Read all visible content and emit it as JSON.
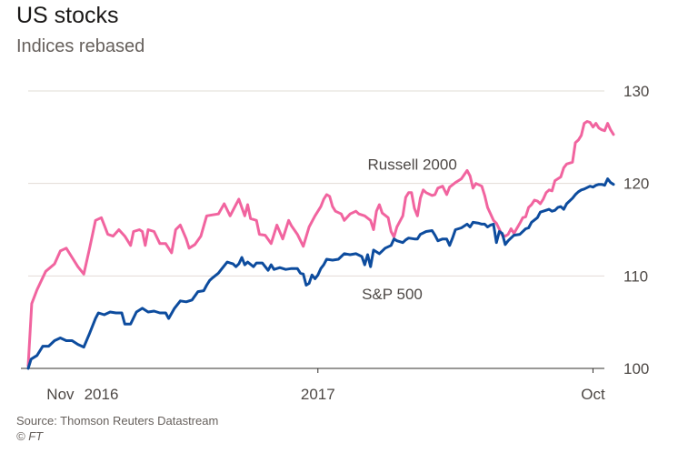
{
  "header": {
    "title": "US stocks",
    "subtitle": "Indices rebased"
  },
  "footer": {
    "source": "Source: Thomson Reuters Datastream",
    "credit": "© FT"
  },
  "colors": {
    "russell": "#f1649f",
    "sp500": "#0d4c9e",
    "grid": "#e2dcd6",
    "axis": "#33302e"
  },
  "chart_data": {
    "type": "line",
    "title": "US stocks",
    "subtitle": "Indices rebased",
    "ylim": [
      100,
      130
    ],
    "y_ticks": [
      100,
      110,
      120,
      130
    ],
    "xlim": [
      0,
      100
    ],
    "x_ticks": [
      {
        "x": 5.5,
        "label": "Nov"
      },
      {
        "x": 12.5,
        "label": "2016"
      },
      {
        "x": 49.5,
        "label": "2017"
      },
      {
        "x": 96.5,
        "label": "Oct"
      }
    ],
    "x_ticks_minor": [
      49.5,
      96.5
    ],
    "grid": true,
    "series": [
      {
        "name": "Russell 2000",
        "color": "#f1649f",
        "label_at": [
          58,
          121.5
        ],
        "points": [
          [
            0,
            100.3
          ],
          [
            0.6,
            107
          ],
          [
            1.5,
            108.5
          ],
          [
            3,
            110.5
          ],
          [
            4.5,
            111.3
          ],
          [
            5.5,
            112.7
          ],
          [
            6.5,
            113
          ],
          [
            7.5,
            112
          ],
          [
            8.5,
            111
          ],
          [
            9.5,
            110.2
          ],
          [
            10.5,
            113
          ],
          [
            11.5,
            116
          ],
          [
            12.5,
            116.3
          ],
          [
            13,
            115.5
          ],
          [
            13.6,
            114.5
          ],
          [
            14.5,
            114.3
          ],
          [
            15.5,
            115
          ],
          [
            16.5,
            114.3
          ],
          [
            17.5,
            113.3
          ],
          [
            18,
            114.8
          ],
          [
            19,
            115
          ],
          [
            19.5,
            114.8
          ],
          [
            20,
            113.3
          ],
          [
            20.5,
            115
          ],
          [
            21.5,
            114.8
          ],
          [
            22.5,
            113.5
          ],
          [
            23.5,
            113.5
          ],
          [
            24.5,
            112.5
          ],
          [
            25.2,
            115
          ],
          [
            26,
            115.5
          ],
          [
            27,
            114
          ],
          [
            27.5,
            113
          ],
          [
            28.5,
            113.4
          ],
          [
            29.5,
            114.3
          ],
          [
            30.5,
            116.5
          ],
          [
            31.5,
            116.6
          ],
          [
            32.5,
            116.7
          ],
          [
            33.5,
            117.8
          ],
          [
            34.5,
            116.5
          ],
          [
            35.5,
            117.7
          ],
          [
            36,
            118.3
          ],
          [
            37,
            116.5
          ],
          [
            37.5,
            117.7
          ],
          [
            38,
            116.2
          ],
          [
            39,
            116
          ],
          [
            39.5,
            114.5
          ],
          [
            40.5,
            114.4
          ],
          [
            41.5,
            113.5
          ],
          [
            42.5,
            115.5
          ],
          [
            43.5,
            114
          ],
          [
            44.5,
            116
          ],
          [
            45,
            115.4
          ],
          [
            46,
            114.5
          ],
          [
            47,
            113.2
          ],
          [
            48,
            115.3
          ],
          [
            49,
            116.5
          ],
          [
            49.5,
            117
          ],
          [
            50,
            117.5
          ],
          [
            50.5,
            118.3
          ],
          [
            51,
            118.8
          ],
          [
            51.5,
            118.6
          ],
          [
            52,
            117.5
          ],
          [
            52.5,
            117
          ],
          [
            53.5,
            116.7
          ],
          [
            54,
            116
          ],
          [
            55,
            116.7
          ],
          [
            56,
            117
          ],
          [
            56.5,
            116.7
          ],
          [
            57.5,
            116.5
          ],
          [
            58.5,
            116
          ],
          [
            59,
            115
          ],
          [
            59.5,
            117
          ],
          [
            60,
            117.7
          ],
          [
            60.5,
            116.8
          ],
          [
            61.5,
            116.3
          ],
          [
            62,
            114.8
          ],
          [
            62.5,
            114.2
          ],
          [
            63,
            115.3
          ],
          [
            64,
            116.5
          ],
          [
            64.5,
            118.5
          ],
          [
            65,
            119
          ],
          [
            65.5,
            119
          ],
          [
            66,
            117.3
          ],
          [
            66.5,
            116.5
          ],
          [
            67,
            118.4
          ],
          [
            67.5,
            119.3
          ],
          [
            68,
            119
          ],
          [
            69,
            118.7
          ],
          [
            69.5,
            118.8
          ],
          [
            70,
            119.5
          ],
          [
            70.8,
            119.7
          ],
          [
            71.5,
            118.8
          ],
          [
            72,
            119.6
          ],
          [
            73,
            120.1
          ],
          [
            74,
            120.5
          ],
          [
            75,
            121.4
          ],
          [
            75.5,
            120.8
          ],
          [
            76,
            119.5
          ],
          [
            76.5,
            120
          ],
          [
            77.5,
            119.7
          ],
          [
            78,
            118.7
          ],
          [
            78.5,
            117.4
          ],
          [
            79,
            116.7
          ],
          [
            79.5,
            116
          ],
          [
            80,
            115.7
          ],
          [
            81,
            114.4
          ],
          [
            81.5,
            114.3
          ],
          [
            82,
            114.5
          ],
          [
            82.5,
            115.1
          ],
          [
            83,
            114.6
          ],
          [
            84,
            115.7
          ],
          [
            84.5,
            116.3
          ],
          [
            85,
            116.4
          ],
          [
            85.5,
            117.4
          ],
          [
            86,
            117.7
          ],
          [
            86.5,
            118.2
          ],
          [
            87,
            118.1
          ],
          [
            87.5,
            117.8
          ],
          [
            88,
            118.3
          ],
          [
            88.5,
            119
          ],
          [
            89,
            119.3
          ],
          [
            89.5,
            119.2
          ],
          [
            90,
            120.3
          ],
          [
            91,
            120.7
          ],
          [
            91.5,
            121.7
          ],
          [
            92,
            122.1
          ],
          [
            92.5,
            122.2
          ],
          [
            93,
            122.3
          ],
          [
            93.5,
            124.4
          ],
          [
            94,
            124.7
          ],
          [
            94.5,
            125.2
          ],
          [
            95,
            126.5
          ],
          [
            95.5,
            126.7
          ],
          [
            96,
            126.6
          ],
          [
            96.5,
            126.1
          ],
          [
            97,
            126.5
          ],
          [
            97.5,
            126
          ],
          [
            98,
            125.8
          ],
          [
            98.5,
            125.7
          ],
          [
            99,
            126.5
          ],
          [
            99.5,
            125.8
          ],
          [
            100,
            125.3
          ]
        ]
      },
      {
        "name": "S&P 500",
        "color": "#0d4c9e",
        "label_at": [
          57,
          107.5
        ],
        "points": [
          [
            0,
            100
          ],
          [
            0.5,
            101
          ],
          [
            1.5,
            101.4
          ],
          [
            2.5,
            102.4
          ],
          [
            3.5,
            102.4
          ],
          [
            4.5,
            103
          ],
          [
            5.5,
            103.3
          ],
          [
            6.5,
            103
          ],
          [
            7.5,
            103
          ],
          [
            8.5,
            102.6
          ],
          [
            9.5,
            102.3
          ],
          [
            10.5,
            103.8
          ],
          [
            11.5,
            105.4
          ],
          [
            12,
            106
          ],
          [
            13,
            105.8
          ],
          [
            14,
            106.1
          ],
          [
            15,
            106
          ],
          [
            16,
            106
          ],
          [
            16.5,
            104.8
          ],
          [
            17.5,
            104.8
          ],
          [
            18.5,
            106.1
          ],
          [
            19.5,
            106.5
          ],
          [
            20.5,
            106.1
          ],
          [
            21.5,
            106.2
          ],
          [
            22.5,
            106
          ],
          [
            23.5,
            106
          ],
          [
            24,
            105.4
          ],
          [
            25,
            106.5
          ],
          [
            26,
            107.3
          ],
          [
            27,
            107.2
          ],
          [
            28,
            107.4
          ],
          [
            29,
            108.3
          ],
          [
            30,
            108.4
          ],
          [
            30.5,
            109
          ],
          [
            31,
            109.5
          ],
          [
            31.5,
            109.8
          ],
          [
            32.5,
            110.3
          ],
          [
            33,
            110.7
          ],
          [
            34,
            111.5
          ],
          [
            35,
            111.3
          ],
          [
            35.5,
            111
          ],
          [
            36,
            111.3
          ],
          [
            36.5,
            112
          ],
          [
            37,
            111.2
          ],
          [
            37.5,
            111.5
          ],
          [
            38.5,
            111
          ],
          [
            39,
            111.4
          ],
          [
            40,
            111.4
          ],
          [
            41,
            110.6
          ],
          [
            41.5,
            111.2
          ],
          [
            42,
            110.7
          ],
          [
            43,
            110.9
          ],
          [
            44,
            110.7
          ],
          [
            45,
            110.8
          ],
          [
            46,
            110.8
          ],
          [
            46.5,
            110.3
          ],
          [
            47,
            110.2
          ],
          [
            47.5,
            109
          ],
          [
            48,
            109.2
          ],
          [
            48.5,
            110.1
          ],
          [
            49,
            109.7
          ],
          [
            49.5,
            110.1
          ],
          [
            50,
            110.8
          ],
          [
            50.5,
            111.2
          ],
          [
            51,
            111.8
          ],
          [
            52,
            111.7
          ],
          [
            53,
            111.8
          ],
          [
            54,
            112.4
          ],
          [
            55,
            112.3
          ],
          [
            56,
            112.4
          ],
          [
            57,
            112.1
          ],
          [
            57.5,
            111.2
          ],
          [
            58,
            112.3
          ],
          [
            58.5,
            111
          ],
          [
            59,
            112.8
          ],
          [
            60,
            112.4
          ],
          [
            61,
            113
          ],
          [
            62,
            113.3
          ],
          [
            62.5,
            114
          ],
          [
            63,
            113.8
          ],
          [
            64,
            113.6
          ],
          [
            64.5,
            113.9
          ],
          [
            65,
            114.1
          ],
          [
            66,
            114
          ],
          [
            66.5,
            114
          ],
          [
            67,
            114.5
          ],
          [
            68,
            114.8
          ],
          [
            69,
            114.9
          ],
          [
            69.5,
            114.4
          ],
          [
            70,
            113.8
          ],
          [
            70.8,
            114
          ],
          [
            71.5,
            114
          ],
          [
            72,
            113.3
          ],
          [
            72.5,
            114.1
          ],
          [
            73,
            115
          ],
          [
            74,
            115.2
          ],
          [
            75,
            115.6
          ],
          [
            75.5,
            115.3
          ],
          [
            76,
            115.8
          ],
          [
            77,
            115.7
          ],
          [
            77.5,
            115.6
          ],
          [
            78,
            115.6
          ],
          [
            78.5,
            115.3
          ],
          [
            79,
            115.5
          ],
          [
            79.5,
            115.6
          ],
          [
            80,
            113.6
          ],
          [
            80.5,
            114.8
          ],
          [
            81,
            114.6
          ],
          [
            81.5,
            113.4
          ],
          [
            82,
            113.8
          ],
          [
            83,
            114.4
          ],
          [
            84,
            114.5
          ],
          [
            85,
            115.1
          ],
          [
            85.5,
            115.2
          ],
          [
            86,
            115.8
          ],
          [
            87,
            116.3
          ],
          [
            87.5,
            116.9
          ],
          [
            88,
            117
          ],
          [
            89,
            117.2
          ],
          [
            89.5,
            117
          ],
          [
            90,
            117.1
          ],
          [
            90.5,
            117.4
          ],
          [
            91,
            117.5
          ],
          [
            91.5,
            117.2
          ],
          [
            92,
            117.8
          ],
          [
            93,
            118.4
          ],
          [
            93.5,
            118.8
          ],
          [
            94,
            119.1
          ],
          [
            94.5,
            119.3
          ],
          [
            95,
            119.4
          ],
          [
            96,
            119.7
          ],
          [
            96.5,
            119.6
          ],
          [
            97,
            119.8
          ],
          [
            97.5,
            119.9
          ],
          [
            98,
            119.9
          ],
          [
            98.5,
            119.8
          ],
          [
            99,
            120.5
          ],
          [
            99.5,
            120.1
          ],
          [
            100,
            119.9
          ]
        ]
      }
    ]
  }
}
